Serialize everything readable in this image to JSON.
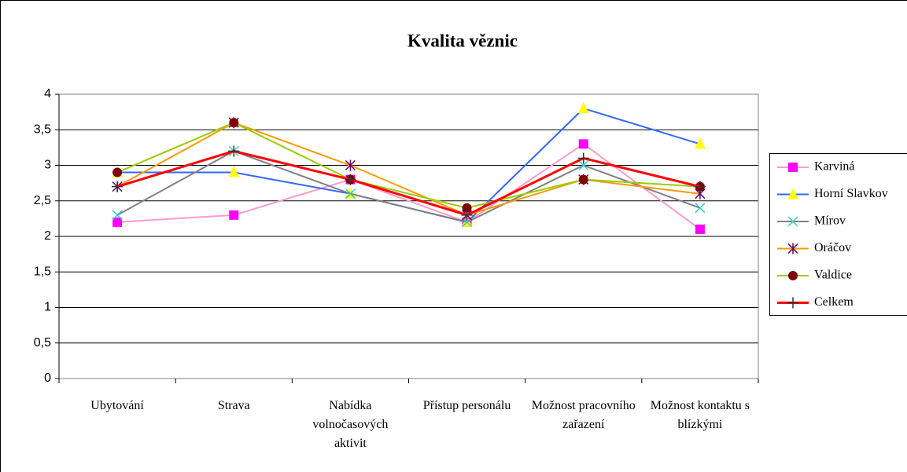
{
  "chart_data": {
    "type": "line",
    "title": "Kvalita věznic",
    "categories": [
      "Ubytování",
      "Strava",
      "Nabídka volnočasových aktivit",
      "Přístup personálu",
      "Možnost pracovního zařazení",
      "Možnost kontaktu s blízkými"
    ],
    "ylim": [
      0,
      4
    ],
    "yticks": [
      0,
      {
        "value": 0.5,
        "label": "0,5"
      },
      1,
      {
        "value": 1.5,
        "label": "1,5"
      },
      2,
      {
        "value": 2.5,
        "label": "2,5"
      },
      3,
      {
        "value": 3.5,
        "label": "3,5"
      },
      4
    ],
    "grid": true,
    "legend": "right",
    "series": [
      {
        "name": "Karviná",
        "color": "#FF99CC",
        "marker": "square",
        "marker_color": "#FF00FF",
        "values": [
          2.2,
          2.3,
          2.8,
          2.2,
          3.3,
          2.1
        ]
      },
      {
        "name": "Horní Slavkov",
        "color": "#3366FF",
        "marker": "triangle",
        "marker_color": "#FFFF00",
        "values": [
          2.9,
          2.9,
          2.6,
          2.2,
          3.8,
          3.3
        ]
      },
      {
        "name": "Mírov",
        "color": "#808080",
        "marker": "x",
        "marker_color": "#33CCCC",
        "values": [
          2.3,
          3.2,
          2.6,
          2.2,
          3.0,
          2.4
        ]
      },
      {
        "name": "Oráčov",
        "color": "#FF9900",
        "marker": "star",
        "marker_color": "#660066",
        "values": [
          2.7,
          3.6,
          3.0,
          2.3,
          2.8,
          2.6
        ]
      },
      {
        "name": "Valdice",
        "color": "#99CC00",
        "marker": "circle",
        "marker_color": "#800000",
        "values": [
          2.9,
          3.6,
          2.8,
          2.4,
          2.8,
          2.7
        ]
      },
      {
        "name": "Celkem",
        "color": "#FF0000",
        "marker": "plus",
        "marker_color": "#333333",
        "width": 3,
        "values": [
          2.7,
          3.2,
          2.8,
          2.3,
          3.1,
          2.7
        ]
      }
    ]
  }
}
